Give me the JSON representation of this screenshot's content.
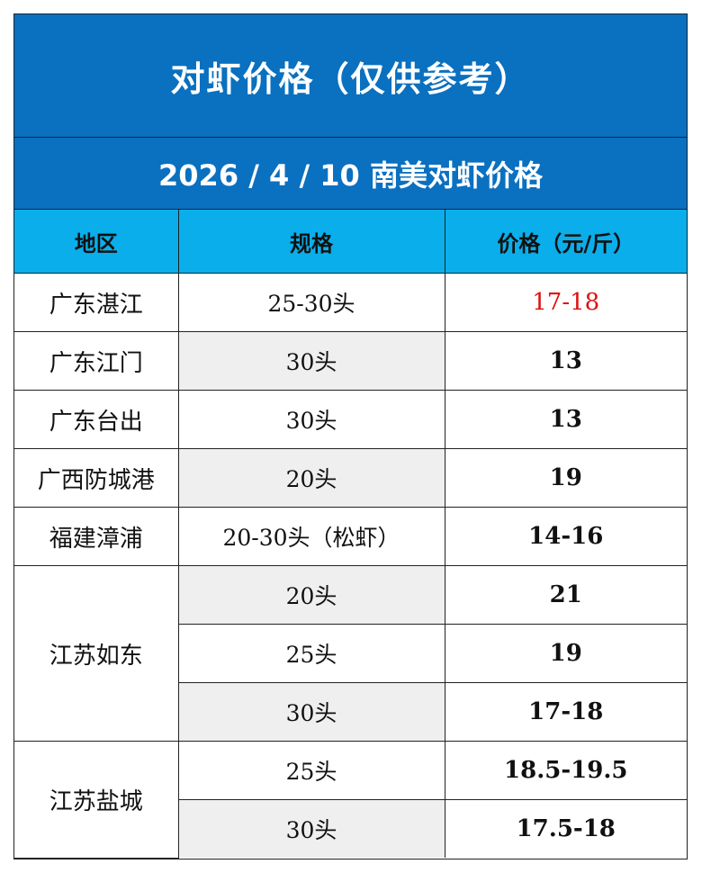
{
  "title": "对虾价格（仅供参考）",
  "subtitle": "2026 / 4 / 10 南美对虾价格",
  "headers": {
    "region": "地区",
    "spec": "规格",
    "price": "价格（元/斤）"
  },
  "rows": [
    {
      "region": "广东湛江",
      "spec": "25-30头",
      "price": "17-18"
    },
    {
      "region": "广东江门",
      "spec": "30头",
      "price": "13"
    },
    {
      "region": "广东台出",
      "spec": "30头",
      "price": "13"
    },
    {
      "region": "广西防城港",
      "spec": "20头",
      "price": "19"
    },
    {
      "region": "福建漳浦",
      "spec": "20-30头（松虾）",
      "price": "14-16"
    },
    {
      "region": "江苏如东",
      "spec": "20头",
      "price": "21"
    },
    {
      "spec": "25头",
      "price": "19"
    },
    {
      "spec": "30头",
      "price": "17-18"
    },
    {
      "region": "江苏盐城",
      "spec": "25头",
      "price": "18.5-19.5"
    },
    {
      "spec": "30头",
      "price": "17.5-18"
    }
  ],
  "colors": {
    "header_blue": "#0a70c0",
    "column_header_blue": "#0aaeea",
    "highlight_red": "#e01010"
  }
}
